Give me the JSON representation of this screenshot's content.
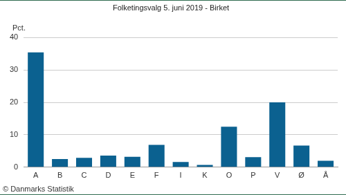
{
  "chart_data": {
    "type": "bar",
    "title": "Folketingsvalg 5. juni 2019 - Birket",
    "ylabel": "Pct.",
    "note": "© Danmarks Statistik",
    "categories": [
      "A",
      "B",
      "C",
      "D",
      "E",
      "F",
      "I",
      "K",
      "O",
      "P",
      "V",
      "Ø",
      "Å"
    ],
    "values": [
      35.4,
      2.5,
      2.9,
      3.6,
      3.2,
      6.9,
      1.6,
      0.7,
      12.5,
      3.1,
      20.0,
      6.7,
      2.0
    ],
    "color": "#0b6190",
    "ylim": [
      0,
      40
    ],
    "yticks": [
      0,
      10,
      20,
      30,
      40
    ],
    "grid": true
  }
}
